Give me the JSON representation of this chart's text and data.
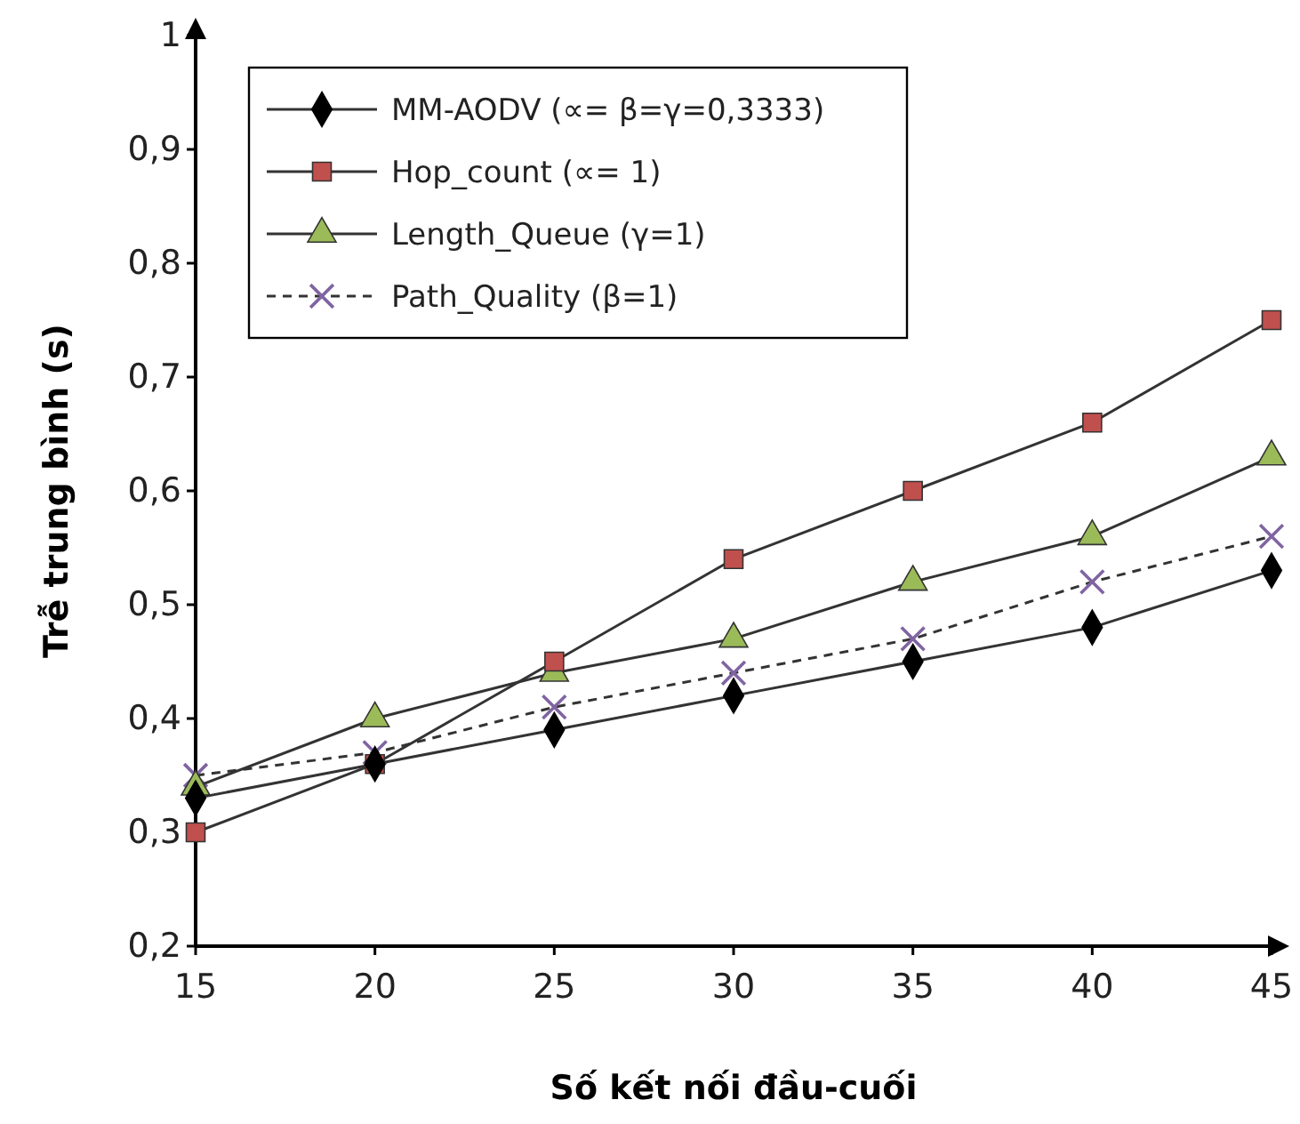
{
  "chart_data": {
    "type": "line",
    "xlabel": "Số kết nối đầu-cuối",
    "ylabel": "Trễ trung bình (s)",
    "x": [
      15,
      20,
      25,
      30,
      35,
      40,
      45
    ],
    "xlim": [
      15,
      45
    ],
    "xticks": [
      15,
      20,
      25,
      30,
      35,
      40,
      45
    ],
    "ylim": [
      0.2,
      1
    ],
    "yticks": [
      {
        "value": 0.2,
        "label": "0,2"
      },
      {
        "value": 0.3,
        "label": "0,3"
      },
      {
        "value": 0.4,
        "label": "0,4"
      },
      {
        "value": 0.5,
        "label": "0,5"
      },
      {
        "value": 0.6,
        "label": "0,6"
      },
      {
        "value": 0.7,
        "label": "0,7"
      },
      {
        "value": 0.8,
        "label": "0,8"
      },
      {
        "value": 0.9,
        "label": "0,9"
      },
      {
        "value": 1,
        "label": "1"
      }
    ],
    "grid": false,
    "legend": "top left",
    "series": [
      {
        "name": "MM-AODV (∝= β=γ=0,3333)",
        "color": "#000000",
        "marker": "diamond",
        "line_style": "solid",
        "values": [
          0.33,
          0.36,
          0.39,
          0.42,
          0.45,
          0.48,
          0.53
        ]
      },
      {
        "name": "Hop_count (∝= 1)",
        "color": "#c0504d",
        "marker": "square",
        "line_style": "solid",
        "values": [
          0.3,
          0.36,
          0.45,
          0.54,
          0.6,
          0.66,
          0.75
        ]
      },
      {
        "name": "Length_Queue (γ=1)",
        "color": "#9bbb59",
        "marker": "triangle",
        "line_style": "solid",
        "values": [
          0.34,
          0.4,
          0.44,
          0.47,
          0.52,
          0.56,
          0.63
        ]
      },
      {
        "name": "Path_Quality (β=1)",
        "color": "#8064a2",
        "marker": "cross",
        "line_style": "dashed",
        "values": [
          0.35,
          0.37,
          0.41,
          0.44,
          0.47,
          0.52,
          0.56
        ]
      }
    ]
  }
}
